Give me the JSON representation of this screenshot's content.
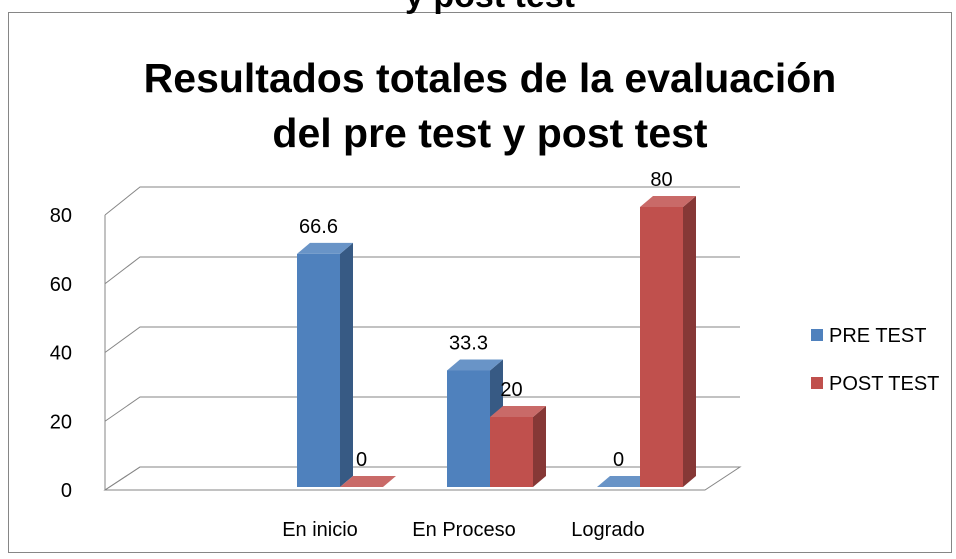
{
  "caption": "y post test",
  "chart_data": {
    "type": "bar3d",
    "title": [
      "Resultados totales de la evaluación",
      "del pre test y post test"
    ],
    "categories": [
      "En inicio",
      "En Proceso",
      "Logrado"
    ],
    "series": [
      {
        "name": "PRE TEST",
        "color": "#4f81bd",
        "values": [
          66.6,
          33.3,
          0
        ]
      },
      {
        "name": "POST TEST",
        "color": "#c0504d",
        "values": [
          0,
          20,
          80
        ]
      }
    ],
    "ylim": [
      0,
      80
    ],
    "yticks": [
      0,
      20,
      40,
      60,
      80
    ],
    "grid": true,
    "legend": "right"
  }
}
